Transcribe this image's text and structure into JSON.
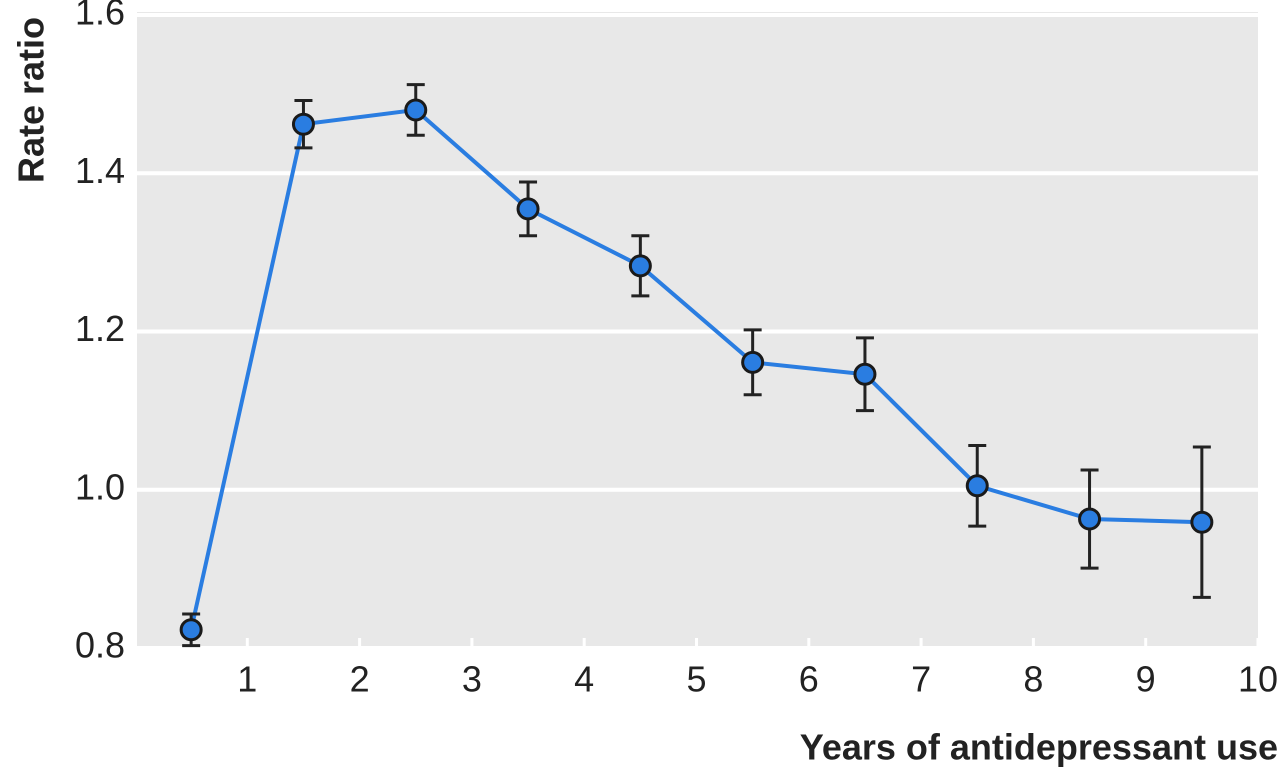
{
  "chart_data": {
    "type": "line",
    "x_label": "Years of antidepressant use",
    "y_label": "Rate ratio",
    "x": [
      0.5,
      1.5,
      2.5,
      3.5,
      4.5,
      5.5,
      6.5,
      7.5,
      8.5,
      9.5
    ],
    "values": [
      0.823,
      1.462,
      1.48,
      1.355,
      1.283,
      1.161,
      1.146,
      1.005,
      0.963,
      0.959
    ],
    "errors": [
      0.02,
      0.03,
      0.032,
      0.034,
      0.038,
      0.041,
      0.046,
      0.051,
      0.062,
      0.095
    ],
    "color": "#2a7de1",
    "xlim": [
      0,
      10
    ],
    "xticks": [
      1,
      2,
      3,
      4,
      5,
      6,
      7,
      8,
      9,
      10
    ],
    "ylim": [
      0.8,
      1.6
    ],
    "yticks": [
      0.8,
      {
        "value": 1,
        "label": "1.0"
      },
      1.2,
      1.4,
      1.6
    ],
    "grid": true
  }
}
